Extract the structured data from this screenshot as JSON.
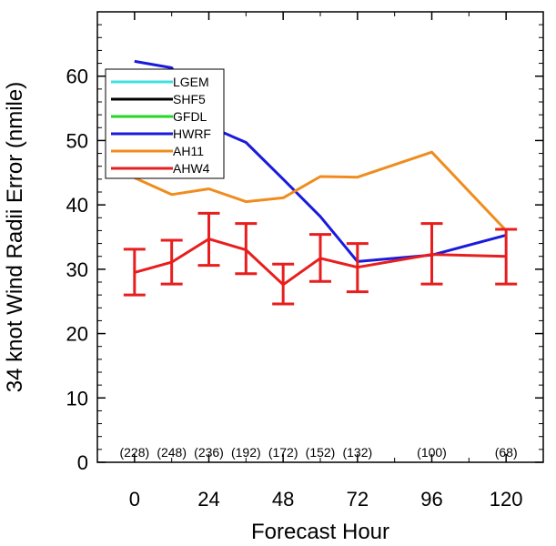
{
  "chart_data": {
    "type": "line",
    "title": "",
    "xlabel": "Forecast Hour",
    "ylabel": "34 knot Wind Radii Error (nmile)",
    "xlim": [
      -12,
      132
    ],
    "ylim": [
      0,
      70
    ],
    "xticks": [
      0,
      24,
      48,
      72,
      96,
      120
    ],
    "yticks": [
      0,
      10,
      20,
      30,
      40,
      50,
      60
    ],
    "minor_xticks": [
      12,
      36,
      60,
      84,
      108
    ],
    "grid": false,
    "legend_placement": "top-left",
    "series": [
      {
        "name": "LGEM",
        "color": "#40e0e0",
        "x": [],
        "y": []
      },
      {
        "name": "SHF5",
        "color": "#000000",
        "x": [],
        "y": []
      },
      {
        "name": "GFDL",
        "color": "#22d822",
        "x": [],
        "y": []
      },
      {
        "name": "HWRF",
        "color": "#1a1adc",
        "x": [
          0,
          12,
          24,
          36,
          48,
          60,
          72,
          96,
          120
        ],
        "y": [
          62.3,
          61.3,
          52.2,
          49.7,
          44.0,
          38.2,
          31.2,
          32.2,
          35.3
        ]
      },
      {
        "name": "AH11",
        "color": "#f08c1e",
        "x": [
          0,
          12,
          24,
          36,
          48,
          60,
          72,
          96,
          120
        ],
        "y": [
          44.2,
          41.6,
          42.5,
          40.5,
          41.1,
          44.4,
          44.3,
          48.2,
          36.0
        ]
      },
      {
        "name": "AHW4",
        "color": "#e81e1e",
        "x": [
          0,
          12,
          24,
          36,
          48,
          60,
          72,
          96,
          120
        ],
        "y": [
          29.5,
          31.1,
          34.7,
          33.0,
          27.6,
          31.7,
          30.3,
          32.3,
          32.0
        ],
        "error_low": [
          26.0,
          27.7,
          30.6,
          29.3,
          24.6,
          28.1,
          26.5,
          27.7,
          27.7
        ],
        "error_high": [
          33.1,
          34.5,
          38.7,
          37.1,
          30.8,
          35.4,
          34.0,
          37.1,
          36.2
        ]
      }
    ],
    "sample_counts": [
      {
        "x": 0,
        "label": "(228)"
      },
      {
        "x": 12,
        "label": "(248)"
      },
      {
        "x": 24,
        "label": "(236)"
      },
      {
        "x": 36,
        "label": "(192)"
      },
      {
        "x": 48,
        "label": "(172)"
      },
      {
        "x": 60,
        "label": "(152)"
      },
      {
        "x": 72,
        "label": "(132)"
      },
      {
        "x": 96,
        "label": "(100)"
      },
      {
        "x": 120,
        "label": "(68)"
      }
    ]
  }
}
